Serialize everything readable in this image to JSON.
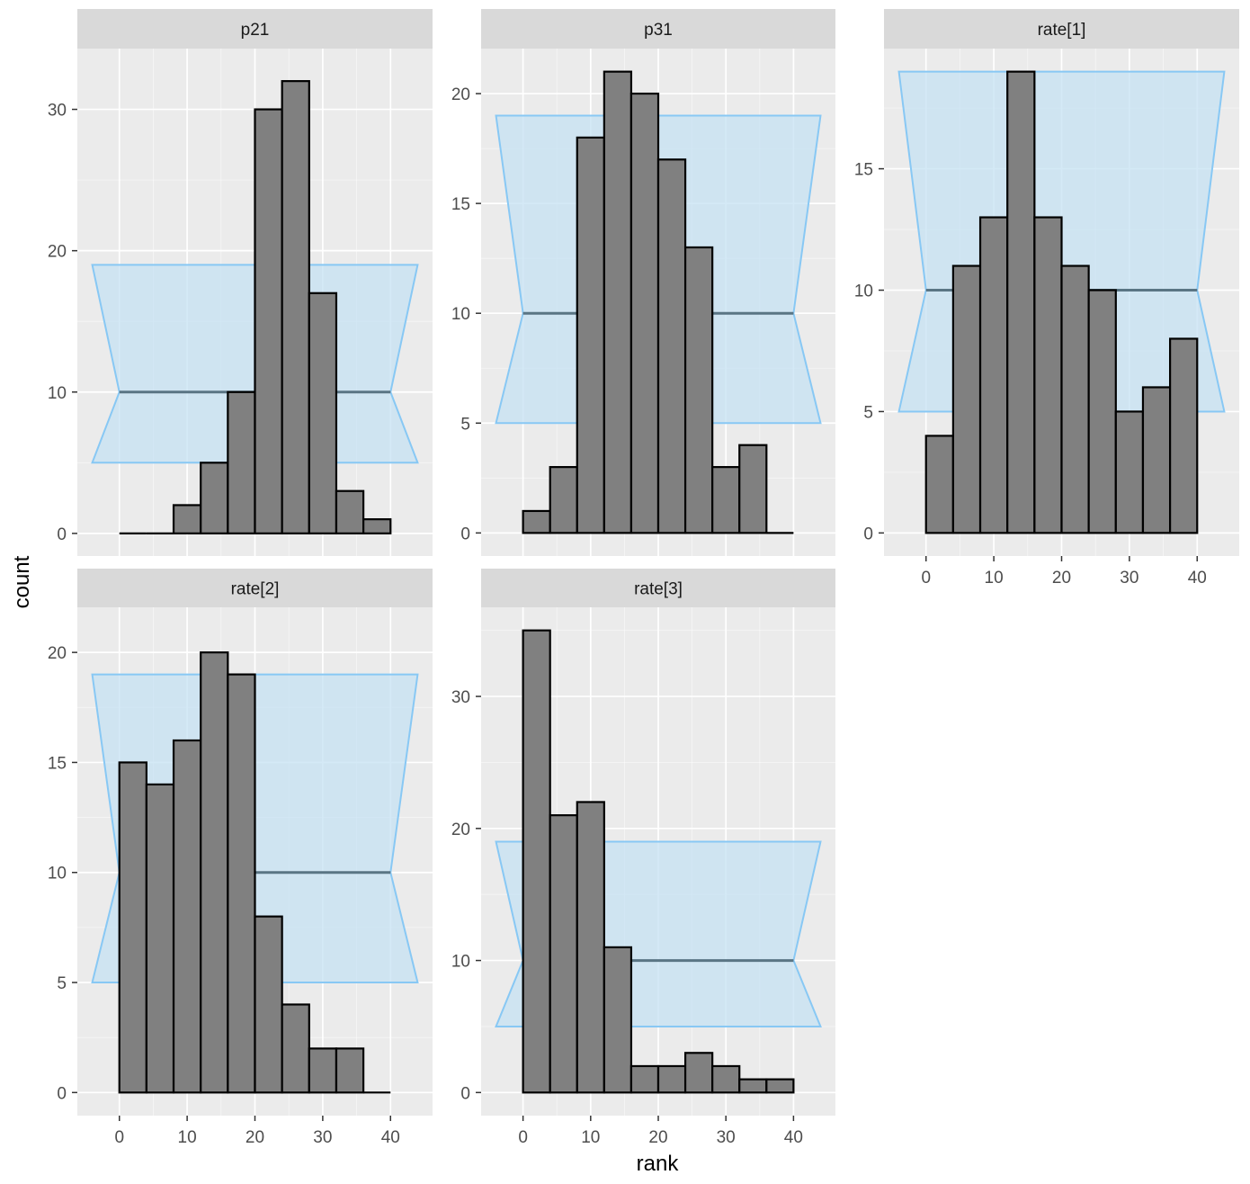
{
  "chart_data": {
    "type": "bar",
    "subtype": "rank-histogram-facets",
    "xlabel": "rank",
    "ylabel": "count",
    "x_ticks": [
      0,
      10,
      20,
      30,
      40
    ],
    "bin_edges": [
      0,
      4,
      8,
      12,
      16,
      20,
      24,
      28,
      32,
      36,
      40
    ],
    "colors": {
      "bar_fill": "#808080",
      "bar_stroke": "#000000",
      "band_fill": "#c6e2f3",
      "band_stroke": "#88c8f4",
      "mean_line": "#5a7584",
      "panel_bg": "#ebebeb",
      "grid_major": "#ffffff",
      "strip_bg": "#d9d9d9"
    },
    "band": {
      "x_outer": [
        -4,
        44
      ],
      "x_inner": [
        0,
        40
      ],
      "lower": 5,
      "mean": 10,
      "upper": 19
    },
    "panels": [
      {
        "title": "p21",
        "yticks": [
          0,
          10,
          20,
          30
        ],
        "ylim": [
          -1.6,
          34.3
        ],
        "counts": [
          0,
          0,
          2,
          5,
          10,
          30,
          32,
          17,
          3,
          1
        ]
      },
      {
        "title": "p31",
        "yticks": [
          0,
          5,
          10,
          15,
          20
        ],
        "ylim": [
          -1.05,
          22.05
        ],
        "counts": [
          1,
          3,
          18,
          21,
          20,
          17,
          13,
          3,
          4,
          0
        ]
      },
      {
        "title": "rate[1]",
        "yticks": [
          0,
          5,
          10,
          15
        ],
        "ylim": [
          -0.95,
          19.95
        ],
        "counts": [
          4,
          11,
          13,
          19,
          13,
          11,
          10,
          5,
          6,
          8
        ]
      },
      {
        "title": "rate[2]",
        "yticks": [
          0,
          5,
          10,
          15,
          20
        ],
        "ylim": [
          -1.05,
          22.05
        ],
        "counts": [
          15,
          14,
          16,
          20,
          19,
          8,
          4,
          2,
          2,
          0
        ]
      },
      {
        "title": "rate[3]",
        "yticks": [
          0,
          10,
          20,
          30
        ],
        "ylim": [
          -1.75,
          36.75
        ],
        "counts": [
          35,
          21,
          22,
          11,
          2,
          2,
          3,
          2,
          1,
          1
        ]
      }
    ]
  }
}
